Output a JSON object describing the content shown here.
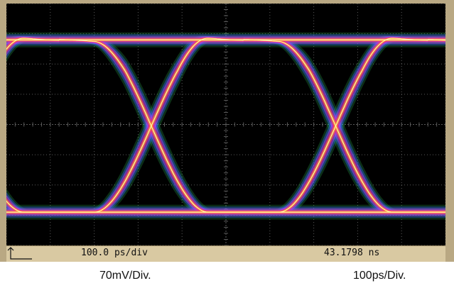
{
  "status_bar": {
    "timebase_readout": "100.0 ps/div",
    "time_readout": "43.1798 ns"
  },
  "captions": {
    "vertical_scale": "70mV/Div.",
    "horizontal_scale": "100ps/Div."
  },
  "colors": {
    "frame": "#b9a883",
    "screen_background": "#000000",
    "graticule": "#5a5a5a",
    "status_bar": "#d9c9a2",
    "trace_core": "#ffffd0",
    "trace_hot": "#ffb020",
    "trace_mid": "#ff3060",
    "trace_cool": "#c040ff",
    "trace_edge": "#3060ff",
    "trace_fringe": "#30c060"
  },
  "chart_data": {
    "type": "line",
    "title": "",
    "xlabel": "",
    "ylabel": "",
    "grid": true,
    "x_divisions": 10,
    "y_divisions": 8,
    "x_unit": "ps",
    "y_unit": "mV",
    "x_per_div": 100,
    "y_per_div": 70,
    "xlim": [
      0,
      1000
    ],
    "ylim": [
      -280,
      280
    ],
    "eye": {
      "high_level_mV": 196,
      "low_level_mV": -203,
      "crossing_times_ps": [
        330,
        750
      ],
      "crossing_level_mV": -7,
      "transition_time_ps": 130,
      "bit_period_ps": 420
    }
  }
}
